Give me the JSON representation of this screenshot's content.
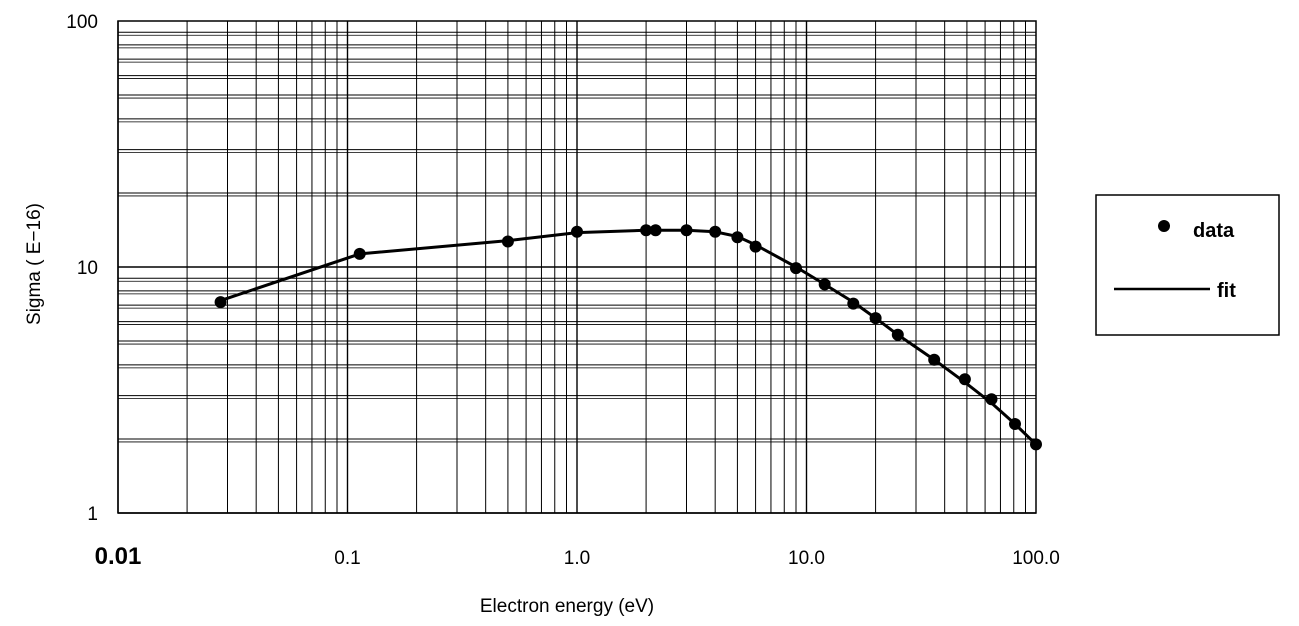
{
  "chart_data": {
    "type": "scatter",
    "x_scale": "log",
    "y_scale": "log",
    "xlim": [
      0.01,
      100.0
    ],
    "ylim": [
      1,
      100
    ],
    "xlabel": "Electron energy (eV)",
    "ylabel": "Sigma ( E−16)",
    "x_tick_labels": [
      "0.01",
      "0.1",
      "1.0",
      "10.0",
      "100.0"
    ],
    "x_tick_values": [
      0.01,
      0.1,
      1.0,
      10.0,
      100.0
    ],
    "y_tick_labels": [
      "1",
      "10",
      "100"
    ],
    "y_tick_values": [
      1,
      10,
      100
    ],
    "grid": true,
    "legend_position": "right",
    "series": [
      {
        "name": "data",
        "style": "markers",
        "color": "#000000",
        "x": [
          0.028,
          0.113,
          0.5,
          1.0,
          2.0,
          2.2,
          3.0,
          4.0,
          5.0,
          6.0,
          9.0,
          12.0,
          16.0,
          20.0,
          25.0,
          36.0,
          49.0,
          64.0,
          81.0,
          100.0
        ],
        "y": [
          7.2,
          11.3,
          12.7,
          13.9,
          14.1,
          14.1,
          14.1,
          13.9,
          13.2,
          12.1,
          9.9,
          8.5,
          7.1,
          6.2,
          5.3,
          4.2,
          3.5,
          2.9,
          2.3,
          1.9
        ]
      },
      {
        "name": "fit",
        "style": "line",
        "color": "#000000",
        "x": [
          0.028,
          0.113,
          0.5,
          1.0,
          2.0,
          3.0,
          4.0,
          5.0,
          6.0,
          9.0,
          12.0,
          16.0,
          20.0,
          25.0,
          36.0,
          49.0,
          64.0,
          81.0,
          100.0
        ],
        "y": [
          7.3,
          11.3,
          12.8,
          13.8,
          14.1,
          14.1,
          13.9,
          13.3,
          12.3,
          10.0,
          8.5,
          7.2,
          6.2,
          5.3,
          4.2,
          3.4,
          2.8,
          2.3,
          1.9
        ]
      }
    ],
    "legend": [
      {
        "label": "data",
        "symbol": "marker"
      },
      {
        "label": "fit",
        "symbol": "line"
      }
    ]
  }
}
